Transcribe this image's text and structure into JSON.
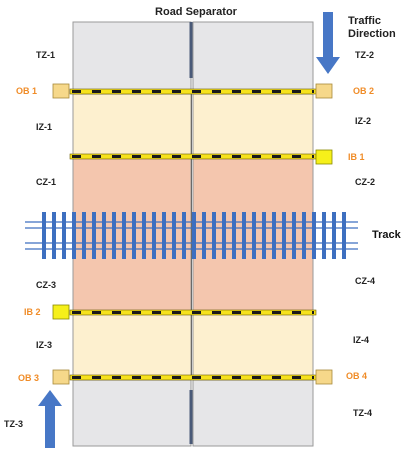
{
  "title": "Road Separator",
  "traffic_direction": [
    "Traffic",
    "Direction"
  ],
  "track_label": "Track",
  "zones": {
    "tz1": "TZ-1",
    "tz2": "TZ-2",
    "tz3": "TZ-3",
    "tz4": "TZ-4",
    "iz1": "IZ-1",
    "iz2": "IZ-2",
    "iz3": "IZ-3",
    "iz4": "IZ-4",
    "cz1": "CZ-1",
    "cz2": "CZ-2",
    "cz3": "CZ-3",
    "cz4": "CZ-4"
  },
  "gates": {
    "ob1": "OB 1",
    "ob2": "OB 2",
    "ob3": "OB 3",
    "ob4": "OB 4",
    "ib1": "IB 1",
    "ib2": "IB 2"
  },
  "colors": {
    "transition_zone": "#e6e6e8",
    "intermediate_zone": "#fdf0cf",
    "crossing_zone": "#f4c6ae",
    "barrier_bar": "#f6e21c",
    "gate_box": "#f6d88a",
    "ib_box": "#f6f01a",
    "track": "#3d6fc0",
    "arrow": "#4777c6",
    "orange_text": "#f08c28"
  }
}
